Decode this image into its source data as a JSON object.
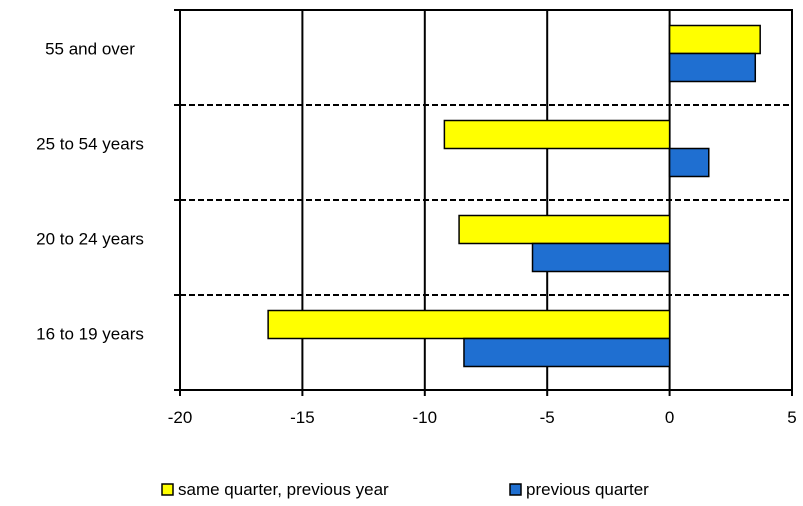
{
  "chart_data": {
    "type": "bar",
    "orientation": "horizontal",
    "categories": [
      "55 and over",
      "25 to 54 years",
      "20 to 24 years",
      "16 to 19 years"
    ],
    "series": [
      {
        "name": "same quarter, previous year",
        "values": [
          3.7,
          -9.2,
          -8.6,
          -16.4
        ],
        "color": "#ffff00"
      },
      {
        "name": "previous quarter",
        "values": [
          3.5,
          1.6,
          -5.6,
          -8.4
        ],
        "color": "#1f6fd1"
      }
    ],
    "xlim": [
      -20,
      5
    ],
    "xticks": [
      "-20",
      "-15",
      "-10",
      "-5",
      "0",
      "5"
    ],
    "xtick_values": [
      -20,
      -15,
      -10,
      -5,
      0,
      5
    ],
    "grid": "vertical solid gridlines; dashed separators between categories",
    "legend_position": "bottom",
    "title": "",
    "xlabel": "",
    "ylabel": ""
  }
}
